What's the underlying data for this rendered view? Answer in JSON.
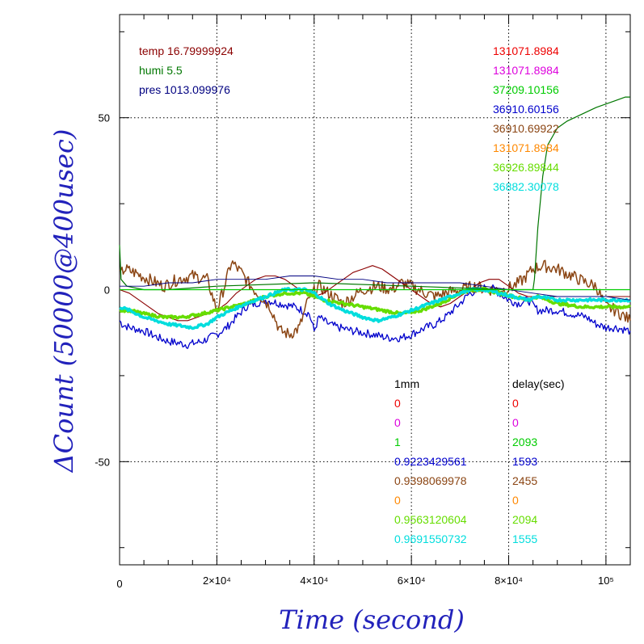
{
  "chart_data": {
    "type": "line",
    "xlabel": "Time (second)",
    "ylabel": "ΔCount (50000@400usec)",
    "xlim": [
      0,
      105000
    ],
    "ylim": [
      -80,
      80
    ],
    "grid": true,
    "x_ticks": [
      {
        "value": 0,
        "label": "0"
      },
      {
        "value": 20000,
        "label": "2×10⁴"
      },
      {
        "value": 40000,
        "label": "4×10⁴"
      },
      {
        "value": 60000,
        "label": "6×10⁴"
      },
      {
        "value": 80000,
        "label": "8×10⁴"
      },
      {
        "value": 100000,
        "label": "10⁵"
      }
    ],
    "y_ticks": [
      {
        "value": 50,
        "label": "50"
      },
      {
        "value": 0,
        "label": "0"
      },
      {
        "value": -50,
        "label": "-50"
      }
    ],
    "env_annotations": [
      {
        "text": "temp 16.79999924",
        "color": "#8b0000"
      },
      {
        "text": "humi 5.5",
        "color": "#007700"
      },
      {
        "text": "pres 1013.099976",
        "color": "#000080"
      }
    ],
    "value_annotations": [
      {
        "text": "131071.8984",
        "color": "#ee0000"
      },
      {
        "text": "131071.8984",
        "color": "#dd00dd"
      },
      {
        "text": "37209.10156",
        "color": "#00cc00"
      },
      {
        "text": "36910.60156",
        "color": "#0000cc"
      },
      {
        "text": "36910.69922",
        "color": "#8b4513"
      },
      {
        "text": "131071.8984",
        "color": "#ff8800"
      },
      {
        "text": "36926.89844",
        "color": "#66dd00"
      },
      {
        "text": "36882.30078",
        "color": "#00dddd"
      }
    ],
    "table_headers": {
      "col1": "1mm",
      "col2": "delay(sec)"
    },
    "table_rows": [
      {
        "col1": "0",
        "col2": "0",
        "color": "#ee0000"
      },
      {
        "col1": "0",
        "col2": "0",
        "color": "#dd00dd"
      },
      {
        "col1": "1",
        "col2": "2093",
        "color": "#00cc00"
      },
      {
        "col1": "0.9223429561",
        "col2": "1593",
        "color": "#0000cc"
      },
      {
        "col1": "0.9398069978",
        "col2": "2455",
        "color": "#8b4513"
      },
      {
        "col1": "0",
        "col2": "0",
        "color": "#ff8800"
      },
      {
        "col1": "0.9563120604",
        "col2": "2094",
        "color": "#66dd00"
      },
      {
        "col1": "0.9691550732",
        "col2": "1555",
        "color": "#00dddd"
      }
    ],
    "series": [
      {
        "color": "#0000cc",
        "width": 1.3,
        "noise": 1.2,
        "x": [
          0,
          500,
          2000,
          5000,
          8000,
          10000,
          14000,
          17000,
          20000,
          22000,
          24000,
          26000,
          30000,
          33000,
          36000,
          39000,
          40000,
          41000,
          43000,
          45000,
          48000,
          52000,
          55000,
          58000,
          60000,
          63000,
          65000,
          67000,
          70000,
          72000,
          74000,
          76000,
          78000,
          80000,
          82000,
          84000,
          86000,
          90000,
          93000,
          96000,
          98000,
          100000,
          102000,
          105000
        ],
        "y": [
          -9,
          -10,
          -11,
          -12,
          -14,
          -15,
          -16,
          -15,
          -13,
          -11,
          -8,
          -5,
          -3,
          -4,
          -5,
          -7,
          -12,
          -8,
          -10,
          -11,
          -12,
          -13,
          -14,
          -14,
          -13,
          -11,
          -10,
          -8,
          -4,
          -1,
          0,
          1,
          -1,
          -3,
          -4,
          -3,
          -6,
          -6,
          -7,
          -8,
          -10,
          -11,
          -11,
          -12
        ]
      },
      {
        "color": "#8b4513",
        "width": 1.5,
        "noise": 1.8,
        "x": [
          0,
          1000,
          3000,
          6000,
          9000,
          12000,
          15000,
          18000,
          20000,
          22000,
          23000,
          25000,
          27000,
          29000,
          31000,
          33000,
          35000,
          37000,
          39000,
          41000,
          43000,
          46000,
          50000,
          53000,
          56000,
          58000,
          60000,
          63000,
          65000,
          67000,
          70000,
          73000,
          76000,
          79000,
          81000,
          83000,
          85000,
          87000,
          90000,
          93000,
          96000,
          98000,
          100000,
          102000,
          105000
        ],
        "y": [
          4,
          6,
          5,
          3,
          1,
          3,
          4,
          3,
          -6,
          3,
          8,
          5,
          1,
          -2,
          -5,
          -12,
          -13,
          -11,
          -2,
          1,
          -1,
          -4,
          0,
          1,
          0,
          2,
          1,
          -1,
          -2,
          -1,
          0,
          1,
          0,
          0,
          1,
          3,
          6,
          7,
          6,
          4,
          2,
          1,
          -5,
          -6,
          -9
        ]
      },
      {
        "color": "#8b0000",
        "width": 1.1,
        "noise": 0,
        "x": [
          0,
          2000,
          4000,
          6000,
          8000,
          10000,
          12000,
          14000,
          16000,
          18000,
          20000,
          22000,
          24000,
          26000,
          28000,
          30000,
          32000,
          34000,
          36000,
          38000,
          40000,
          42000,
          44000,
          46000,
          48000,
          50000,
          52000,
          54000,
          56000,
          58000,
          60000,
          62000,
          64000,
          66000,
          68000,
          70000,
          72000,
          74000,
          76000,
          78000,
          80000,
          82000,
          84000,
          86000,
          88000,
          90000,
          92000,
          94000,
          96000,
          98000,
          100000,
          102000,
          105000
        ],
        "y": [
          0,
          -1,
          -3,
          -5,
          -7,
          -8,
          -9,
          -9,
          -8,
          -7,
          -6,
          -4,
          -1,
          1,
          3,
          4,
          4,
          3,
          1,
          -1,
          -2,
          -1,
          1,
          3,
          5,
          6,
          7,
          6,
          4,
          2,
          0,
          -2,
          -4,
          -5,
          -4,
          -2,
          0,
          2,
          3,
          3,
          1,
          -1,
          -2,
          -2,
          -2,
          -2,
          -2,
          -2,
          -2,
          -2,
          -2,
          -2,
          -2
        ]
      },
      {
        "color": "#66dd00",
        "width": 3.5,
        "noise": 0.4,
        "x": [
          0,
          2000,
          5000,
          9000,
          13000,
          17000,
          20000,
          23000,
          26000,
          30000,
          34000,
          38000,
          40000,
          42000,
          46000,
          50000,
          54000,
          58000,
          62000,
          66000,
          70000,
          72000,
          75000,
          78000,
          81000,
          84000,
          86000,
          90000,
          95000,
          100000,
          105000
        ],
        "y": [
          -6,
          -6,
          -7,
          -8,
          -8,
          -7,
          -6,
          -5,
          -4,
          -2,
          -1,
          -1,
          -2,
          -3,
          -4,
          -5,
          -6,
          -7,
          -6,
          -4,
          -1,
          0,
          0,
          -1,
          -2,
          -3,
          -2,
          -4,
          -5,
          -5,
          -5
        ]
      },
      {
        "color": "#00dddd",
        "width": 3.5,
        "noise": 0.4,
        "x": [
          0,
          2000,
          5000,
          10000,
          15000,
          18000,
          20000,
          23000,
          26000,
          30000,
          34000,
          38000,
          40000,
          43000,
          46000,
          50000,
          53000,
          56000,
          60000,
          64000,
          68000,
          70000,
          72000,
          75000,
          78000,
          81000,
          84000,
          86000,
          90000,
          95000,
          100000,
          105000
        ],
        "y": [
          -5,
          -6,
          -8,
          -10,
          -11,
          -10,
          -8,
          -6,
          -4,
          -2,
          0,
          0,
          -1,
          -4,
          -6,
          -8,
          -9,
          -8,
          -6,
          -4,
          -2,
          -1,
          0,
          0,
          -1,
          -2,
          -3,
          -2,
          -3,
          -3,
          -3,
          -3
        ]
      },
      {
        "color": "#007700",
        "width": 1.2,
        "noise": 0,
        "x": [
          0,
          300,
          1500,
          5000,
          10000,
          20000,
          40000,
          60000,
          80000,
          85000,
          85300,
          86000,
          87000,
          88000,
          90000,
          92000,
          95000,
          98000,
          100000,
          102000,
          104000,
          105000
        ],
        "y": [
          13,
          3,
          1,
          0,
          0,
          1,
          2,
          1,
          0,
          0,
          3,
          18,
          33,
          42,
          47,
          49,
          51,
          53,
          54,
          55,
          56,
          56
        ]
      },
      {
        "color": "#000080",
        "width": 0.9,
        "noise": 0,
        "x": [
          0,
          5000,
          10000,
          15000,
          20000,
          25000,
          30000,
          35000,
          40000,
          45000,
          50000,
          55000,
          60000,
          65000,
          70000,
          75000,
          80000,
          85000,
          90000,
          95000,
          100000,
          105000
        ],
        "y": [
          1,
          1,
          2,
          2,
          3,
          3,
          3,
          4,
          4,
          3,
          3,
          2,
          2,
          2,
          2,
          1,
          0,
          -1,
          -2,
          -2,
          -2,
          -3
        ]
      },
      {
        "color": "#00cc00",
        "width": 1.2,
        "noise": 0,
        "x": [
          0,
          105000
        ],
        "y": [
          0,
          0
        ]
      }
    ]
  }
}
